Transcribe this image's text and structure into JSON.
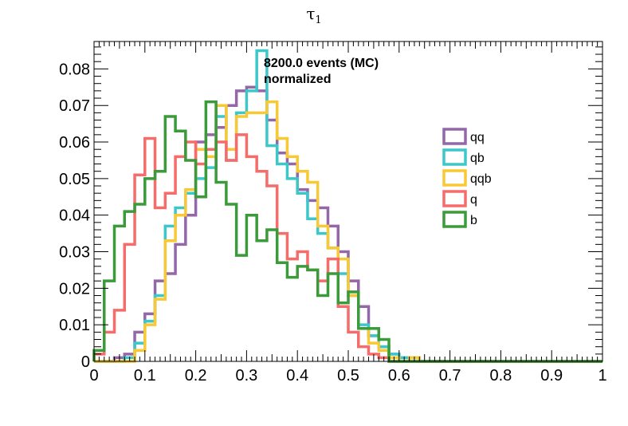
{
  "chart_data": {
    "type": "histogram",
    "title": "τ",
    "title_subscript": "1",
    "annotations": [
      "8200.0 events (MC)",
      "normalized"
    ],
    "xlim": [
      0,
      1
    ],
    "ylim": [
      0,
      0.0875
    ],
    "x_ticks": [
      0,
      0.1,
      0.2,
      0.3,
      0.4,
      0.5,
      0.6,
      0.7,
      0.8,
      0.9,
      1
    ],
    "x_tick_labels": [
      "0",
      "0.1",
      "0.2",
      "0.3",
      "0.4",
      "0.5",
      "0.6",
      "0.7",
      "0.8",
      "0.9",
      "1"
    ],
    "y_ticks": [
      0,
      0.01,
      0.02,
      0.03,
      0.04,
      0.05,
      0.06,
      0.07,
      0.08
    ],
    "y_tick_labels": [
      "0",
      "0.01",
      "0.02",
      "0.03",
      "0.04",
      "0.05",
      "0.06",
      "0.07",
      "0.08"
    ],
    "bin_width": 0.02,
    "legend_position": "right",
    "grid": false,
    "series": [
      {
        "name": "qq",
        "color": "#9467a8",
        "values": [
          0.0,
          0.0,
          0.001,
          0.002,
          0.008,
          0.013,
          0.022,
          0.024,
          0.032,
          0.04,
          0.06,
          0.062,
          0.064,
          0.07,
          0.074,
          0.075,
          0.074,
          0.066,
          0.057,
          0.054,
          0.047,
          0.044,
          0.042,
          0.037,
          0.03,
          0.022,
          0.015,
          0.007,
          0.004,
          0.002,
          0.001,
          0.001,
          0.0,
          0.0,
          0.0,
          0.0,
          0.0,
          0.0,
          0.0,
          0.0,
          0.0,
          0.0,
          0.0,
          0.0,
          0.0,
          0.0,
          0.0,
          0.0,
          0.0,
          0.0
        ]
      },
      {
        "name": "qb",
        "color": "#3cc7c9",
        "values": [
          0.0,
          0.0,
          0.0,
          0.001,
          0.005,
          0.011,
          0.018,
          0.037,
          0.042,
          0.046,
          0.05,
          0.053,
          0.067,
          0.055,
          0.068,
          0.074,
          0.085,
          0.059,
          0.054,
          0.05,
          0.046,
          0.039,
          0.035,
          0.031,
          0.024,
          0.018,
          0.01,
          0.007,
          0.004,
          0.002,
          0.001,
          0.001,
          0.0,
          0.0,
          0.0,
          0.0,
          0.0,
          0.0,
          0.0,
          0.0,
          0.0,
          0.0,
          0.0,
          0.0,
          0.0,
          0.0,
          0.0,
          0.0,
          0.0,
          0.0
        ]
      },
      {
        "name": "qqb",
        "color": "#f9c935",
        "values": [
          0.0,
          0.0,
          0.0,
          0.0,
          0.003,
          0.01,
          0.017,
          0.033,
          0.04,
          0.047,
          0.058,
          0.056,
          0.07,
          0.058,
          0.067,
          0.068,
          0.068,
          0.071,
          0.061,
          0.056,
          0.052,
          0.049,
          0.037,
          0.031,
          0.028,
          0.018,
          0.009,
          0.005,
          0.003,
          0.001,
          0.0,
          0.001,
          0.0,
          0.0,
          0.0,
          0.0,
          0.0,
          0.0,
          0.0,
          0.0,
          0.0,
          0.0,
          0.0,
          0.0,
          0.0,
          0.0,
          0.0,
          0.0,
          0.0,
          0.0
        ]
      },
      {
        "name": "q",
        "color": "#f56c6a",
        "values": [
          0.002,
          0.008,
          0.014,
          0.032,
          0.051,
          0.061,
          0.042,
          0.046,
          0.056,
          0.06,
          0.054,
          0.058,
          0.06,
          0.055,
          0.062,
          0.056,
          0.052,
          0.048,
          0.035,
          0.028,
          0.03,
          0.025,
          0.022,
          0.028,
          0.015,
          0.008,
          0.004,
          0.002,
          0.001,
          0.0,
          0.0,
          0.0,
          0.0,
          0.0,
          0.0,
          0.0,
          0.0,
          0.0,
          0.0,
          0.0,
          0.0,
          0.0,
          0.0,
          0.0,
          0.0,
          0.0,
          0.0,
          0.0,
          0.0,
          0.0
        ]
      },
      {
        "name": "b",
        "color": "#3b9a3a",
        "values": [
          0.003,
          0.022,
          0.037,
          0.041,
          0.043,
          0.05,
          0.052,
          0.067,
          0.063,
          0.055,
          0.045,
          0.071,
          0.049,
          0.043,
          0.029,
          0.04,
          0.033,
          0.036,
          0.027,
          0.023,
          0.026,
          0.025,
          0.018,
          0.024,
          0.016,
          0.019,
          0.009,
          0.009,
          0.006,
          0.0,
          0.0,
          0.0,
          0.0,
          0.0,
          0.0,
          0.0,
          0.0,
          0.0,
          0.0,
          0.0,
          0.0,
          0.0,
          0.0,
          0.0,
          0.0,
          0.0,
          0.0,
          0.0,
          0.0,
          0.0
        ]
      }
    ]
  }
}
